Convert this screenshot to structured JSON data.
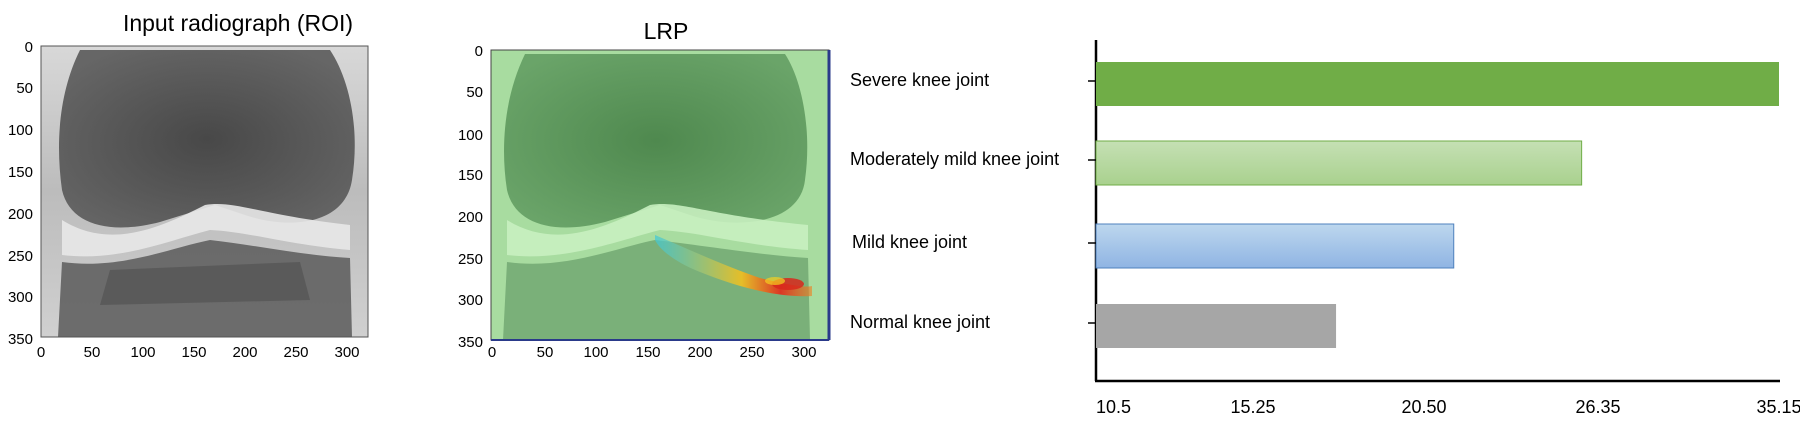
{
  "panels": {
    "input": {
      "title": "Input radiograph (ROI)",
      "x_ticks": [
        "0",
        "50",
        "100",
        "150",
        "200",
        "250",
        "300"
      ],
      "y_ticks": [
        "0",
        "50",
        "100",
        "150",
        "200",
        "250",
        "300",
        "350"
      ]
    },
    "lrp": {
      "title": "LRP",
      "x_ticks": [
        "0",
        "50",
        "100",
        "150",
        "200",
        "250",
        "300"
      ],
      "y_ticks": [
        "0",
        "50",
        "100",
        "150",
        "200",
        "250",
        "300",
        "350"
      ]
    }
  },
  "chart_data": [
    {
      "type": "heatmap",
      "title": "Input radiograph (ROI)",
      "x_range": [
        0,
        320
      ],
      "y_range": [
        0,
        355
      ],
      "y_inverted": true,
      "colormap": "gray",
      "content": "knee radiograph image"
    },
    {
      "type": "heatmap",
      "title": "LRP",
      "x_range": [
        0,
        320
      ],
      "y_range": [
        0,
        355
      ],
      "y_inverted": true,
      "colormap": "green overlay with red/yellow/cyan relevance hotspot",
      "content": "LRP relevance map over knee radiograph"
    },
    {
      "type": "bar",
      "orientation": "horizontal",
      "categories": [
        "Severe knee joint",
        "Moderately mild knee joint",
        "Mild knee joint",
        "Normal knee joint"
      ],
      "values": [
        35.15,
        25.8,
        21.5,
        17.8
      ],
      "x_tick_labels": [
        "10.5",
        "15.25",
        "20.50",
        "26.35",
        "35.15"
      ],
      "xlim": [
        10.5,
        35.15
      ],
      "colors": [
        "#70ad47",
        "#a9d18e",
        "#9dc3e6",
        "#a6a6a6"
      ],
      "grid": false,
      "legend": "none"
    }
  ]
}
